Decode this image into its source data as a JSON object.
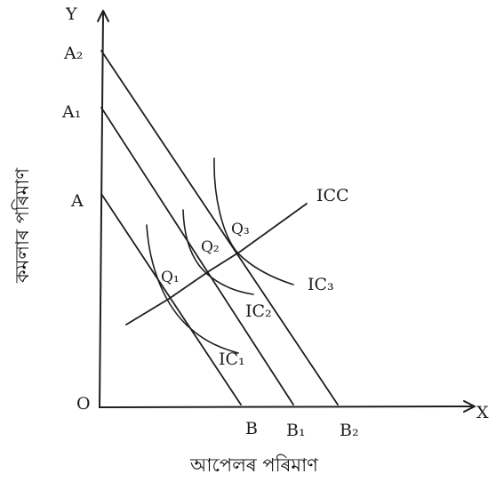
{
  "axes": {
    "y_label": "Y",
    "x_label": "X",
    "origin_label": "O",
    "x_title": "আপেলৰ পৰিমাণ",
    "y_title": "কমলাৰ পৰিমাণ"
  },
  "budget_lines": [
    {
      "start_label": "A",
      "end_label": "B"
    },
    {
      "start_label": "A₁",
      "end_label": "B₁"
    },
    {
      "start_label": "A₂",
      "end_label": "B₂"
    }
  ],
  "equilibrium_points": [
    "Q₁",
    "Q₂",
    "Q₃"
  ],
  "indifference_curves": [
    "IC₁",
    "IC₂",
    "IC₃"
  ],
  "icc_label": "ICC"
}
